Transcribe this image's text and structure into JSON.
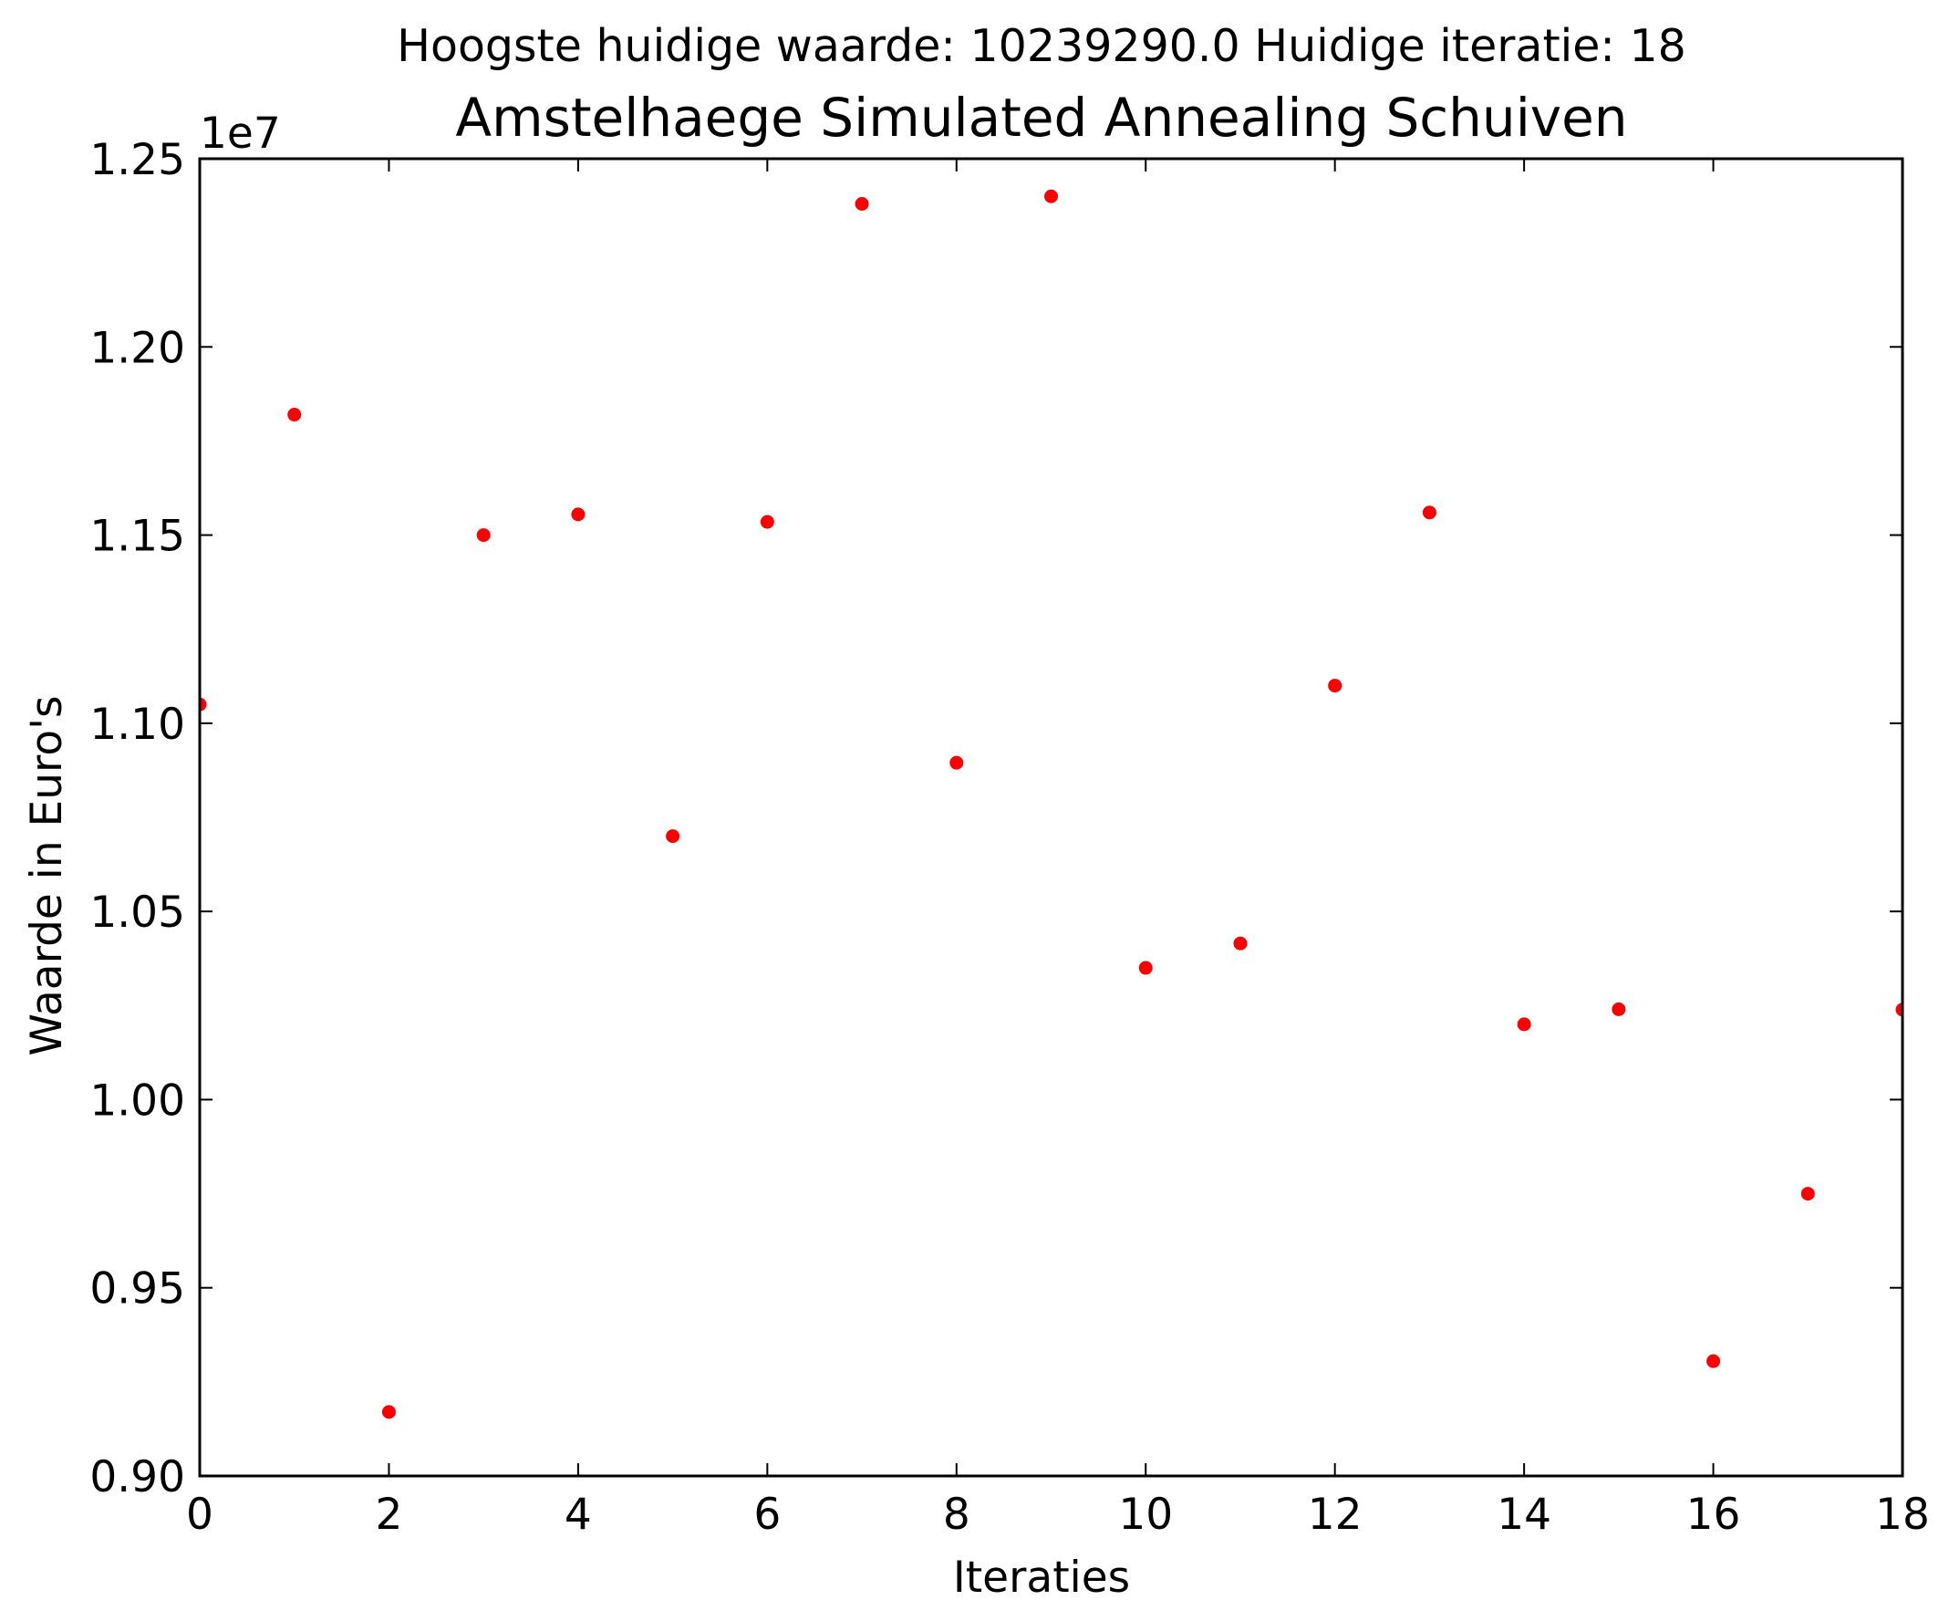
{
  "chart_data": {
    "type": "scatter",
    "suptitle": "Hoogste huidige waarde: 10239290.0 Huidige iteratie: 18",
    "title": "Amstelhaege Simulated Annealing Schuiven",
    "xlabel": "Iteraties",
    "ylabel": "Waarde in Euro's",
    "y_offset_label": "1e7",
    "xlim": [
      0,
      18
    ],
    "ylim": [
      0.9,
      1.25
    ],
    "y_scale_factor": 10000000,
    "x_ticks": [
      0,
      2,
      4,
      6,
      8,
      10,
      12,
      14,
      16,
      18
    ],
    "x_tick_labels": [
      "0",
      "2",
      "4",
      "6",
      "8",
      "10",
      "12",
      "14",
      "16",
      "18"
    ],
    "y_ticks": [
      0.9,
      0.95,
      1.0,
      1.05,
      1.1,
      1.15,
      1.2,
      1.25
    ],
    "y_tick_labels": [
      "0.90",
      "0.95",
      "1.00",
      "1.05",
      "1.10",
      "1.15",
      "1.20",
      "1.25"
    ],
    "grid": false,
    "marker_color": "#ff0000",
    "series": [
      {
        "x": [
          0,
          1,
          2,
          3,
          4,
          5,
          6,
          7,
          8,
          9,
          10,
          11,
          12,
          13,
          14,
          15,
          16,
          17,
          18
        ],
        "y": [
          1.105,
          1.182,
          0.917,
          1.15,
          1.1555,
          1.07,
          1.1535,
          1.238,
          1.0895,
          1.24,
          1.035,
          1.0415,
          1.11,
          1.156,
          1.02,
          1.024,
          0.9305,
          0.975,
          1.0239
        ]
      }
    ]
  }
}
